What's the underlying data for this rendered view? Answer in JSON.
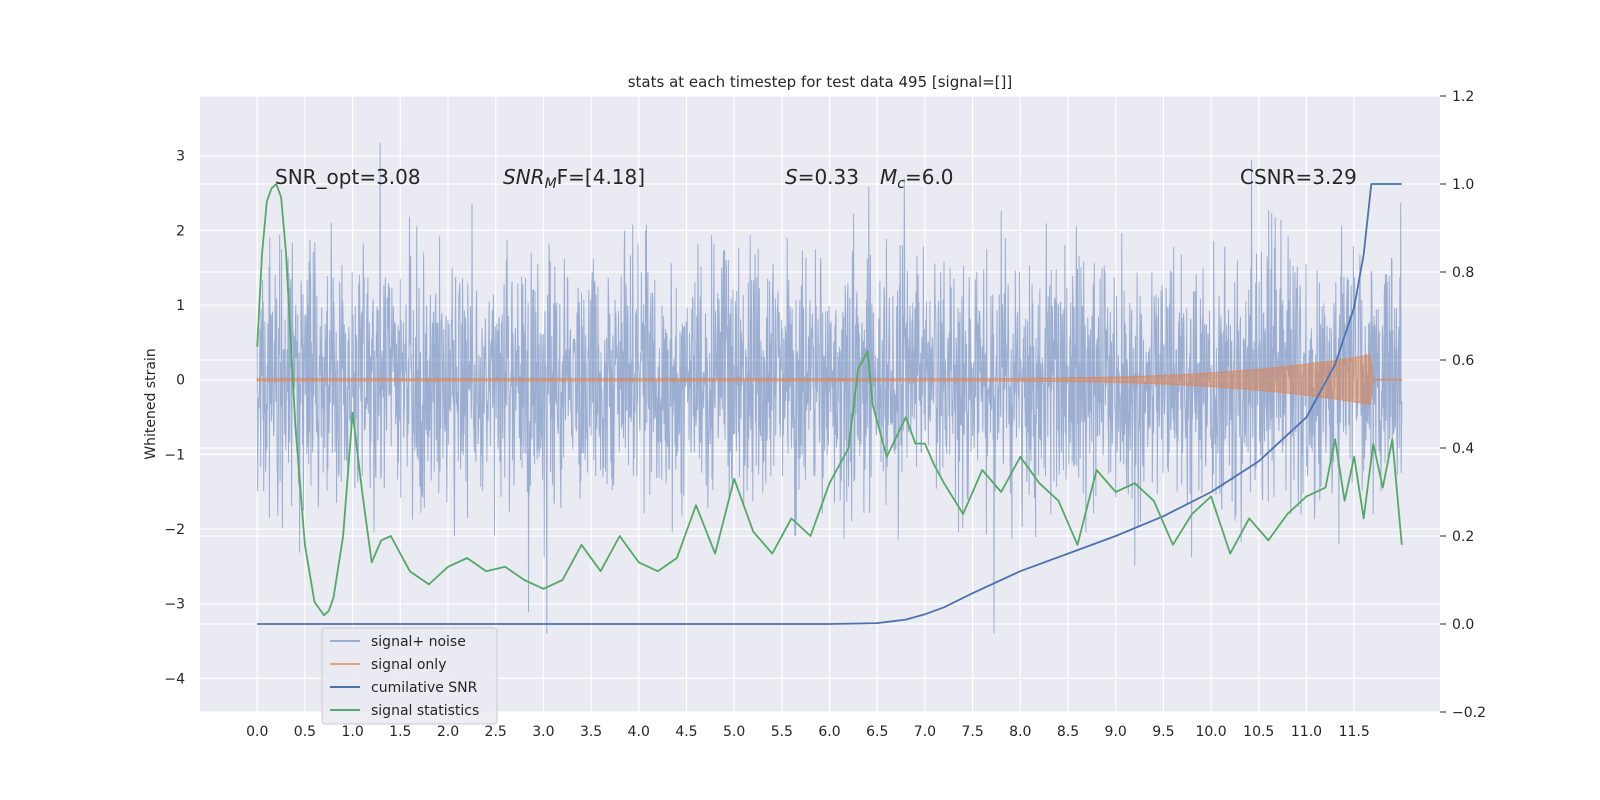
{
  "chart_data": {
    "type": "line",
    "title": "stats at each timestep for test data 495 [signal=[]]",
    "ylabel": "Whitened strain",
    "y2label": "",
    "xlim": [
      -0.6,
      12.4
    ],
    "ylim": [
      -4.45,
      3.8
    ],
    "y2lim": [
      -0.2,
      1.2
    ],
    "xticks": [
      "0.0",
      "0.5",
      "1.0",
      "1.5",
      "2.0",
      "2.5",
      "3.0",
      "3.5",
      "4.0",
      "4.5",
      "5.0",
      "5.5",
      "6.0",
      "6.5",
      "7.0",
      "7.5",
      "8.0",
      "8.5",
      "9.0",
      "9.5",
      "10.0",
      "10.5",
      "11.0",
      "11.5"
    ],
    "yticks": [
      "3",
      "2",
      "1",
      "0",
      "−1",
      "−2",
      "−3",
      "−4"
    ],
    "y2ticks": [
      "1.2",
      "1.0",
      "0.8",
      "0.6",
      "0.4",
      "0.2",
      "0.0",
      "−0.2"
    ],
    "grid": true,
    "legend_position": "lower-left",
    "annotations": {
      "snr_opt": "SNR_opt=3.08",
      "snr_mf_prefix": "SNR",
      "snr_mf_sub": "M",
      "snr_mf_suffix": "F=[4.18]",
      "s_label": "S",
      "s_value": "=0.33",
      "mc_label": "M",
      "mc_sub": "c",
      "mc_value": "=6.0",
      "csnr": "CSNR=3.29"
    },
    "series": [
      {
        "name": "signal+ noise",
        "color": "#4c72b0",
        "axis": "left",
        "description_range": [
          -3.4,
          3.4
        ]
      },
      {
        "name": "signal only",
        "color": "#dd8452",
        "axis": "left"
      },
      {
        "name": "cumilative SNR",
        "color": "#4c72b0",
        "axis": "right",
        "x": [
          0.0,
          1.0,
          2.0,
          3.0,
          4.0,
          5.0,
          6.0,
          6.5,
          6.8,
          7.0,
          7.2,
          7.5,
          7.8,
          8.0,
          8.5,
          9.0,
          9.5,
          10.0,
          10.5,
          11.0,
          11.3,
          11.5,
          11.6,
          11.68,
          12.0
        ],
        "y": [
          0.0,
          0.0,
          0.0,
          0.0,
          0.0,
          0.0,
          0.0,
          0.002,
          0.01,
          0.022,
          0.038,
          0.07,
          0.1,
          0.12,
          0.16,
          0.2,
          0.245,
          0.3,
          0.37,
          0.47,
          0.59,
          0.72,
          0.84,
          1.0,
          1.0
        ]
      },
      {
        "name": "signal statistics",
        "color": "#55a868",
        "axis": "right",
        "x": [
          0.0,
          0.05,
          0.1,
          0.15,
          0.2,
          0.25,
          0.3,
          0.4,
          0.5,
          0.6,
          0.7,
          0.75,
          0.8,
          0.9,
          1.0,
          1.1,
          1.2,
          1.3,
          1.4,
          1.5,
          1.6,
          1.8,
          2.0,
          2.2,
          2.4,
          2.6,
          2.8,
          3.0,
          3.2,
          3.4,
          3.6,
          3.8,
          4.0,
          4.2,
          4.4,
          4.6,
          4.8,
          5.0,
          5.2,
          5.4,
          5.6,
          5.8,
          6.0,
          6.2,
          6.3,
          6.4,
          6.45,
          6.5,
          6.6,
          6.8,
          6.9,
          7.0,
          7.1,
          7.2,
          7.4,
          7.6,
          7.8,
          8.0,
          8.2,
          8.4,
          8.6,
          8.8,
          9.0,
          9.2,
          9.4,
          9.6,
          9.8,
          10.0,
          10.2,
          10.4,
          10.6,
          10.8,
          11.0,
          11.2,
          11.3,
          11.4,
          11.5,
          11.6,
          11.7,
          11.8,
          11.9,
          12.0
        ],
        "y": [
          0.63,
          0.84,
          0.96,
          0.99,
          1.0,
          0.97,
          0.85,
          0.45,
          0.18,
          0.05,
          0.02,
          0.03,
          0.06,
          0.2,
          0.48,
          0.3,
          0.14,
          0.19,
          0.2,
          0.16,
          0.12,
          0.09,
          0.13,
          0.15,
          0.12,
          0.13,
          0.1,
          0.08,
          0.1,
          0.18,
          0.12,
          0.2,
          0.14,
          0.12,
          0.15,
          0.27,
          0.16,
          0.33,
          0.21,
          0.16,
          0.24,
          0.2,
          0.32,
          0.4,
          0.58,
          0.62,
          0.5,
          0.46,
          0.38,
          0.47,
          0.41,
          0.41,
          0.36,
          0.32,
          0.25,
          0.35,
          0.3,
          0.38,
          0.32,
          0.28,
          0.18,
          0.35,
          0.3,
          0.32,
          0.28,
          0.18,
          0.25,
          0.29,
          0.16,
          0.24,
          0.19,
          0.25,
          0.29,
          0.31,
          0.42,
          0.28,
          0.38,
          0.24,
          0.41,
          0.31,
          0.42,
          0.18
        ]
      }
    ]
  }
}
